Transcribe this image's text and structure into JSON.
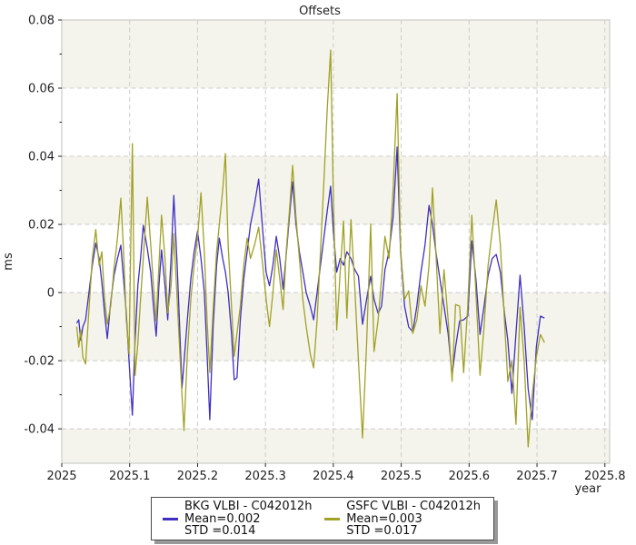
{
  "chart_data": {
    "type": "line",
    "title": "Offsets",
    "xlabel": "year",
    "ylabel": "ms",
    "xlim": [
      2025.0,
      2025.807
    ],
    "ylim": [
      -0.0501,
      0.08
    ],
    "grid": true,
    "grid_color": "#cccccc",
    "spine_color": "#cccccc",
    "band_color": "#f4f4ec",
    "plot_bg": "#ffffff",
    "bands": [
      [
        0.06,
        0.08
      ],
      [
        0.02,
        0.04
      ],
      [
        -0.02,
        0.0
      ],
      [
        -0.0501,
        -0.04
      ]
    ],
    "x_ticks": [
      {
        "v": 2025.0,
        "label": "2025"
      },
      {
        "v": 2025.1,
        "label": "2025.1"
      },
      {
        "v": 2025.2,
        "label": "2025.2"
      },
      {
        "v": 2025.3,
        "label": "2025.3"
      },
      {
        "v": 2025.4,
        "label": "2025.4"
      },
      {
        "v": 2025.5,
        "label": "2025.5"
      },
      {
        "v": 2025.6,
        "label": "2025.6"
      },
      {
        "v": 2025.7,
        "label": "2025.7"
      },
      {
        "v": 2025.8,
        "label": "2025.8"
      }
    ],
    "y_ticks": [
      {
        "v": 0.08,
        "label": "0.08"
      },
      {
        "v": 0.06,
        "label": "0.06"
      },
      {
        "v": 0.04,
        "label": "0.04"
      },
      {
        "v": 0.02,
        "label": "0.02"
      },
      {
        "v": 0.0,
        "label": "0"
      },
      {
        "v": -0.02,
        "label": "-0.02"
      },
      {
        "v": -0.04,
        "label": "-0.04"
      }
    ],
    "y_minor_ticks": [
      0.07,
      0.05,
      0.03,
      0.01,
      -0.01,
      -0.03
    ],
    "legend_position": "bottom-center",
    "x": [
      2025.022,
      2025.025,
      2025.028,
      2025.031,
      2025.035,
      2025.04,
      2025.045,
      2025.05,
      2025.055,
      2025.059,
      2025.063,
      2025.067,
      2025.072,
      2025.077,
      2025.082,
      2025.087,
      2025.091,
      2025.095,
      2025.099,
      2025.104,
      2025.108,
      2025.112,
      2025.116,
      2025.12,
      2025.126,
      2025.131,
      2025.135,
      2025.139,
      2025.143,
      2025.147,
      2025.152,
      2025.156,
      2025.161,
      2025.165,
      2025.17,
      2025.174,
      2025.177,
      2025.18,
      2025.185,
      2025.19,
      2025.195,
      2025.2,
      2025.205,
      2025.21,
      2025.214,
      2025.218,
      2025.223,
      2025.228,
      2025.232,
      2025.237,
      2025.241,
      2025.245,
      2025.25,
      2025.254,
      2025.258,
      2025.263,
      2025.268,
      2025.273,
      2025.278,
      2025.284,
      2025.29,
      2025.296,
      2025.301,
      2025.306,
      2025.311,
      2025.316,
      2025.321,
      2025.326,
      2025.331,
      2025.336,
      2025.34,
      2025.345,
      2025.35,
      2025.355,
      2025.36,
      2025.366,
      2025.371,
      2025.376,
      2025.381,
      2025.386,
      2025.391,
      2025.396,
      2025.4,
      2025.405,
      2025.41,
      2025.415,
      2025.42,
      2025.426,
      2025.431,
      2025.437,
      2025.443,
      2025.449,
      2025.455,
      2025.46,
      2025.466,
      2025.471,
      2025.476,
      2025.482,
      2025.488,
      2025.494,
      2025.499,
      2025.505,
      2025.511,
      2025.517,
      2025.523,
      2025.529,
      2025.535,
      2025.541,
      2025.546,
      2025.551,
      2025.557,
      2025.563,
      2025.569,
      2025.575,
      2025.58,
      2025.586,
      2025.592,
      2025.598,
      2025.604,
      2025.61,
      2025.616,
      2025.622,
      2025.628,
      2025.634,
      2025.64,
      2025.646,
      2025.652,
      2025.657,
      2025.663,
      2025.669,
      2025.675,
      2025.681,
      2025.687,
      2025.693,
      2025.699,
      2025.705,
      2025.711
    ],
    "series": [
      {
        "name": "BKG VLBI - C042012h",
        "mean_label": "Mean=0.002",
        "std_label": "STD =0.014",
        "mean": 0.002,
        "std": 0.014,
        "color": "#3e2fc1",
        "values": [
          -0.009,
          -0.008,
          -0.014,
          -0.01,
          -0.008,
          0,
          0.008,
          0.0145,
          0.01,
          0.003,
          -0.006,
          -0.0135,
          -0.003,
          0.005,
          0.01,
          0.0139,
          0.004,
          -0.006,
          -0.02,
          -0.036,
          -0.014,
          0.002,
          0.01,
          0.0197,
          0.013,
          0.006,
          -0.004,
          -0.0128,
          0.002,
          0.0125,
          0.002,
          -0.008,
          0.01,
          0.0285,
          0.008,
          -0.012,
          -0.028,
          -0.0205,
          -0.008,
          0.004,
          0.012,
          0.018,
          0.01,
          0,
          -0.018,
          -0.0373,
          -0.01,
          0.008,
          0.016,
          0.01,
          0.006,
          0,
          -0.012,
          -0.0256,
          -0.025,
          -0.008,
          0.004,
          0.012,
          0.02,
          0.026,
          0.0333,
          0.018,
          0.006,
          0.002,
          0.008,
          0.0165,
          0.01,
          0.001,
          0.012,
          0.024,
          0.0325,
          0.02,
          0.012,
          0.006,
          0,
          -0.004,
          -0.008,
          0,
          0.008,
          0.016,
          0.024,
          0.0312,
          0.018,
          0.006,
          0.01,
          0.008,
          0.012,
          0.01,
          0.007,
          0.0048,
          -0.0093,
          -0.002,
          0.0048,
          -0.002,
          -0.0061,
          -0.004,
          0.0067,
          0.012,
          0.022,
          0.0427,
          0.012,
          -0.004,
          -0.0101,
          -0.0115,
          -0.004,
          0.006,
          0.014,
          0.0256,
          0.02,
          0.012,
          0.004,
          -0.004,
          -0.012,
          -0.0243,
          -0.016,
          -0.0083,
          -0.008,
          -0.0069,
          0.0152,
          0.004,
          -0.0123,
          -0.004,
          0.005,
          0.01,
          0.0112,
          0.006,
          -0.006,
          -0.014,
          -0.0296,
          -0.012,
          0.0051,
          -0.01,
          -0.0283,
          -0.0373,
          -0.016,
          -0.0069,
          -0.0075
        ]
      },
      {
        "name": "GSFC VLBI - C042012h",
        "mean_label": "Mean=0.003",
        "std_label": "STD =0.017",
        "mean": 0.003,
        "std": 0.017,
        "color": "#a0a125",
        "values": [
          -0.01,
          -0.016,
          -0.011,
          -0.019,
          -0.021,
          -0.005,
          0.01,
          0.0185,
          0.008,
          0.012,
          -0.002,
          -0.0093,
          -0.004,
          0.007,
          0.016,
          0.0277,
          0.012,
          -0.008,
          -0.018,
          0.0437,
          -0.0243,
          -0.015,
          -0.002,
          0.01,
          0.028,
          0.014,
          0.002,
          -0.0083,
          0.008,
          0.0227,
          0.01,
          -0.006,
          0.002,
          0.0173,
          -0.002,
          -0.018,
          -0.03,
          -0.0405,
          -0.018,
          -0.002,
          0.008,
          0.016,
          0.0293,
          0.012,
          -0.008,
          -0.0235,
          -0.005,
          0.012,
          0.02,
          0.03,
          0.0408,
          0.014,
          -0.004,
          -0.0187,
          -0.012,
          -0.004,
          0.008,
          0.016,
          0.01,
          0.014,
          0.0192,
          0.008,
          -0.002,
          -0.01,
          0,
          0.0125,
          0.004,
          -0.005,
          0.013,
          0.026,
          0.0373,
          0.022,
          0.01,
          -0.002,
          -0.01,
          -0.018,
          -0.0221,
          -0.008,
          0.012,
          0.032,
          0.054,
          0.0712,
          0.028,
          -0.011,
          0.006,
          0.021,
          -0.0075,
          0.0214,
          0.004,
          -0.02,
          -0.0427,
          -0.015,
          0.0201,
          -0.0173,
          -0.008,
          0.004,
          0.0165,
          0.01,
          0.03,
          0.0584,
          0.0125,
          -0.002,
          0.0005,
          -0.012,
          -0.008,
          0.002,
          -0.004,
          0.008,
          0.0307,
          0.012,
          -0.012,
          0.0067,
          -0.008,
          -0.0261,
          -0.0035,
          -0.004,
          -0.0235,
          -0.004,
          0.0227,
          0,
          -0.0243,
          -0.01,
          0.008,
          0.018,
          0.0272,
          0.014,
          -0.008,
          -0.0261,
          -0.02,
          -0.0387,
          -0.0043,
          -0.02,
          -0.0453,
          -0.03,
          -0.019,
          -0.0123,
          -0.0147
        ]
      }
    ]
  }
}
